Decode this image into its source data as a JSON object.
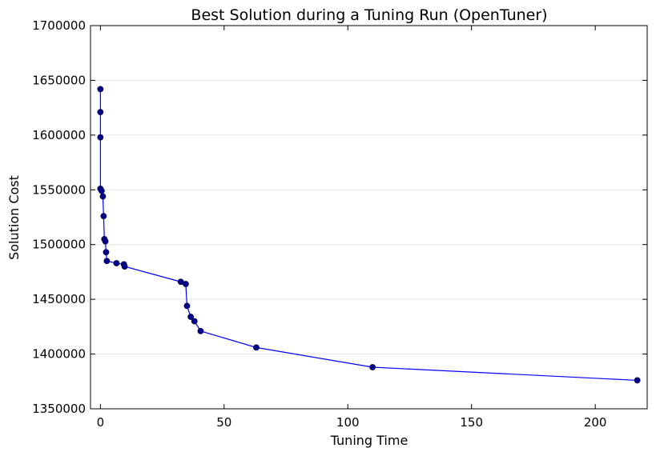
{
  "chart_data": {
    "type": "line",
    "title": "Best Solution during a Tuning Run (OpenTuner)",
    "xlabel": "Tuning Time",
    "ylabel": "Solution Cost",
    "xlim": [
      -4,
      221
    ],
    "ylim": [
      1350000,
      1700000
    ],
    "xticks": [
      0,
      50,
      100,
      150,
      200
    ],
    "yticks": [
      1350000,
      1400000,
      1450000,
      1500000,
      1550000,
      1600000,
      1650000,
      1700000
    ],
    "xtick_labels": [
      "0",
      "50",
      "100",
      "150",
      "200"
    ],
    "ytick_labels": [
      "1350000",
      "1400000",
      "1450000",
      "1500000",
      "1550000",
      "1600000",
      "1650000",
      "1700000"
    ],
    "grid": "horizontal",
    "line_color": "#0000ff",
    "marker_color": "#00008b",
    "series": [
      {
        "x": [
          0.0,
          0.0,
          0.0,
          0.0,
          0.5,
          1.0,
          1.3,
          1.6,
          2.0,
          2.3,
          2.6,
          6.5,
          9.5,
          9.8,
          32.5,
          34.5,
          35.0,
          36.5,
          38.0,
          40.5,
          63.0,
          110.0,
          217.0
        ],
        "y": [
          1642000,
          1621000,
          1598000,
          1551000,
          1549000,
          1544000,
          1526000,
          1505000,
          1503000,
          1493000,
          1485000,
          1483000,
          1482000,
          1480000,
          1466000,
          1464000,
          1444000,
          1434000,
          1430000,
          1421000,
          1406000,
          1388000,
          1376000
        ]
      }
    ]
  }
}
